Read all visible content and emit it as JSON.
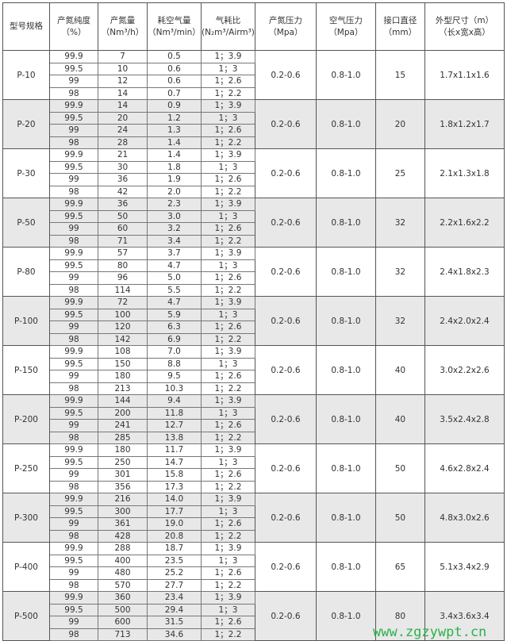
{
  "headers": [
    [
      "型号规格",
      ""
    ],
    [
      "产氮纯度",
      "（%）"
    ],
    [
      "产氮量",
      "（Nm³/h）"
    ],
    [
      "耗空气量",
      "（Nm³/min）"
    ],
    [
      "气耗比",
      "(N₂m³/Airm³)"
    ],
    [
      "产氮压力",
      "（Mpa）"
    ],
    [
      "空气压力",
      "（Mpa）"
    ],
    [
      "接口直径",
      "（mm）"
    ],
    [
      "外型尺寸（m）",
      "（长x宽x高）"
    ]
  ],
  "purities": [
    "99.9",
    "99.5",
    "99",
    "98"
  ],
  "ratios": [
    "1；3.9",
    "1；3",
    "1；2.6",
    "1；2.2"
  ],
  "models": [
    {
      "model": "P-10",
      "flow": [
        "7",
        "10",
        "12",
        "14"
      ],
      "air": [
        "0.5",
        "0.6",
        "0.6",
        "0.7"
      ],
      "np": "0.2-0.6",
      "ap": "0.8-1.0",
      "dia": "15",
      "size": "1.7x1.1x1.6"
    },
    {
      "model": "P-20",
      "flow": [
        "14",
        "20",
        "24",
        "28"
      ],
      "air": [
        "0.9",
        "1.2",
        "1.3",
        "1.4"
      ],
      "np": "0.2-0.6",
      "ap": "0.8-1.0",
      "dia": "20",
      "size": "1.8x1.2x1.7"
    },
    {
      "model": "P-30",
      "flow": [
        "21",
        "30",
        "36",
        "42"
      ],
      "air": [
        "1.4",
        "1.8",
        "1.9",
        "2.0"
      ],
      "np": "0.2-0.6",
      "ap": "0.8-1.0",
      "dia": "25",
      "size": "2.1x1.3x1.8"
    },
    {
      "model": "P-50",
      "flow": [
        "36",
        "50",
        "60",
        "71"
      ],
      "air": [
        "2.3",
        "3.0",
        "3.2",
        "3.4"
      ],
      "np": "0.2-0.6",
      "ap": "0.8-1.0",
      "dia": "32",
      "size": "2.2x1.6x2.2"
    },
    {
      "model": "P-80",
      "flow": [
        "57",
        "80",
        "96",
        "114"
      ],
      "air": [
        "3.7",
        "4.7",
        "5.0",
        "5.5"
      ],
      "np": "0.2-0.6",
      "ap": "0.8-1.0",
      "dia": "32",
      "size": "2.4x1.8x2.3"
    },
    {
      "model": "P-100",
      "flow": [
        "72",
        "100",
        "120",
        "142"
      ],
      "air": [
        "4.7",
        "5.9",
        "6.3",
        "6.9"
      ],
      "np": "0.2-0.6",
      "ap": "0.8-1.0",
      "dia": "32",
      "size": "2.4x2.0x2.4"
    },
    {
      "model": "P-150",
      "flow": [
        "108",
        "150",
        "180",
        "213"
      ],
      "air": [
        "7.0",
        "8.8",
        "9.5",
        "10.3"
      ],
      "np": "0.2-0.6",
      "ap": "0.8-1.0",
      "dia": "40",
      "size": "3.0x2.2x2.6"
    },
    {
      "model": "P-200",
      "flow": [
        "144",
        "200",
        "241",
        "285"
      ],
      "air": [
        "9.4",
        "11.8",
        "12.7",
        "13.8"
      ],
      "np": "0.2-0.6",
      "ap": "0.8-1.0",
      "dia": "40",
      "size": "3.5x2.4x2.8"
    },
    {
      "model": "P-250",
      "flow": [
        "180",
        "250",
        "301",
        "356"
      ],
      "air": [
        "11.7",
        "14.7",
        "15.8",
        "17.3"
      ],
      "np": "0.2-0.6",
      "ap": "0.8-1.0",
      "dia": "50",
      "size": "4.6x2.8x2.4"
    },
    {
      "model": "P-300",
      "flow": [
        "216",
        "300",
        "361",
        "428"
      ],
      "air": [
        "14.0",
        "17.7",
        "19.0",
        "20.8"
      ],
      "np": "0.2-0.6",
      "ap": "0.8-1.0",
      "dia": "50",
      "size": "4.8x3.0x2.6"
    },
    {
      "model": "P-400",
      "flow": [
        "288",
        "400",
        "480",
        "570"
      ],
      "air": [
        "18.7",
        "23.5",
        "25.2",
        "27.7"
      ],
      "np": "0.2-0.6",
      "ap": "0.8-1.0",
      "dia": "65",
      "size": "5.1x3.4x2.9"
    },
    {
      "model": "P-500",
      "flow": [
        "360",
        "500",
        "600",
        "713"
      ],
      "air": [
        "23.4",
        "29.4",
        "31.5",
        "34.6"
      ],
      "np": "0.2-0.6",
      "ap": "0.8-1.0",
      "dia": "80",
      "size": "3.4x3.6x3.4"
    }
  ],
  "watermark": "www.zgzywpt.cn"
}
